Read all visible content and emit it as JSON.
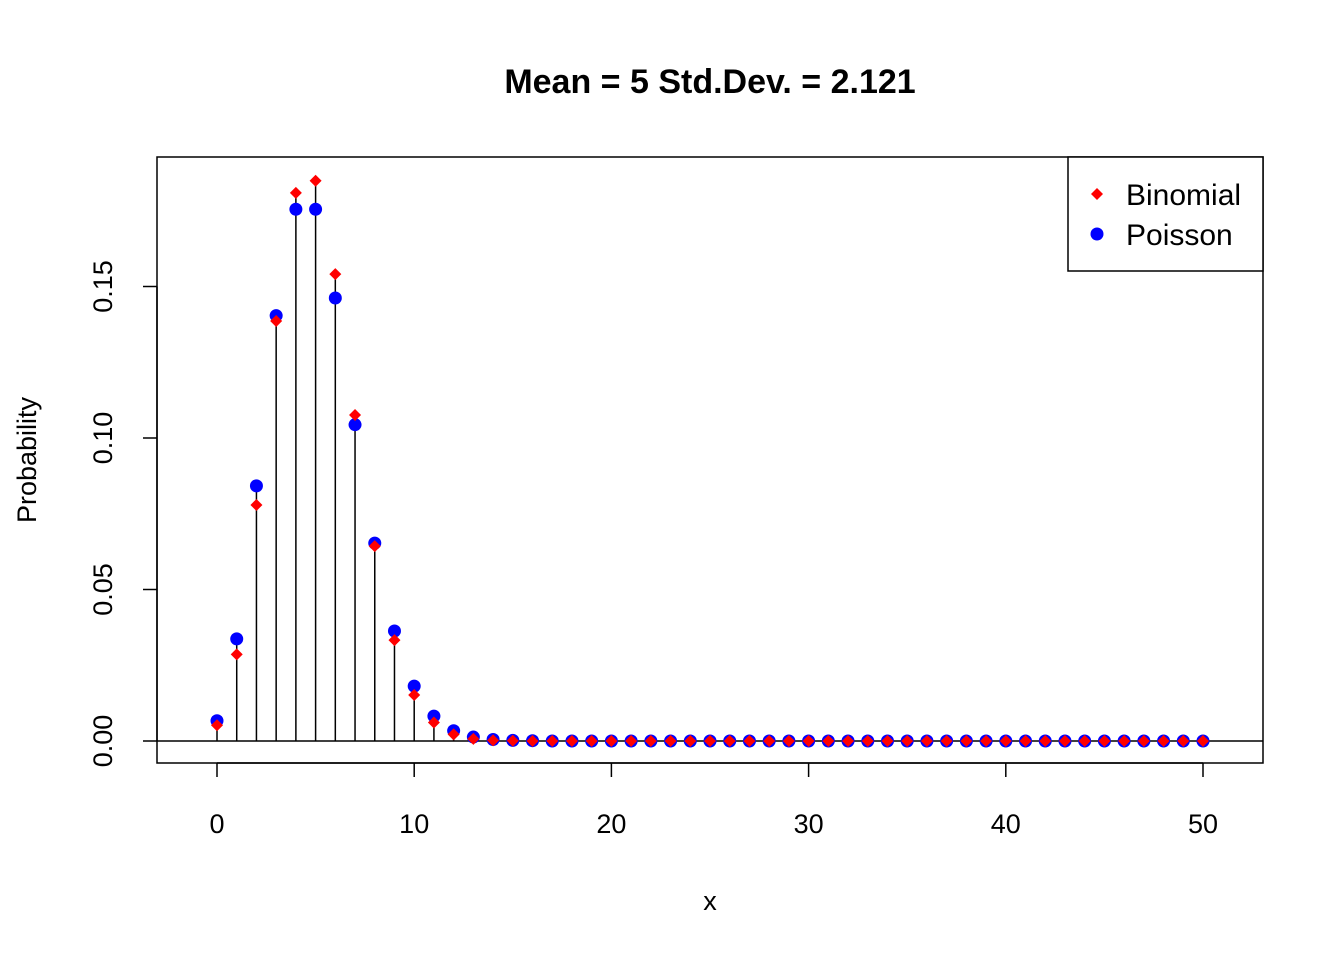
{
  "chart_data": {
    "type": "scatter",
    "title": "Mean = 5 Std.Dev. = 2.121",
    "xlabel": "x",
    "ylabel": "Probability",
    "xlim": [
      0,
      50
    ],
    "ylim": [
      0,
      0.185
    ],
    "x_ticks": [
      "0",
      "10",
      "20",
      "30",
      "40",
      "50"
    ],
    "y_ticks": [
      "0.00",
      "0.05",
      "0.10",
      "0.15"
    ],
    "grid": false,
    "legend_position": "top-right",
    "x": [
      0,
      1,
      2,
      3,
      4,
      5,
      6,
      7,
      8,
      9,
      10,
      11,
      12,
      13,
      14,
      15,
      16,
      17,
      18,
      19,
      20,
      21,
      22,
      23,
      24,
      25,
      26,
      27,
      28,
      29,
      30,
      31,
      32,
      33,
      34,
      35,
      36,
      37,
      38,
      39,
      40,
      41,
      42,
      43,
      44,
      45,
      46,
      47,
      48,
      49,
      50
    ],
    "series": [
      {
        "name": "Binomial",
        "marker": "diamond",
        "color": "#FF0000",
        "values": [
          0.0052,
          0.0286,
          0.0779,
          0.1386,
          0.1809,
          0.1849,
          0.1541,
          0.1076,
          0.0643,
          0.0333,
          0.0152,
          0.0061,
          0.0022,
          0.0007,
          0.0002,
          0.0001,
          0,
          0,
          0,
          0,
          0,
          0,
          0,
          0,
          0,
          0,
          0,
          0,
          0,
          0,
          0,
          0,
          0,
          0,
          0,
          0,
          0,
          0,
          0,
          0,
          0,
          0,
          0,
          0,
          0,
          0,
          0,
          0,
          0,
          0,
          0
        ]
      },
      {
        "name": "Poisson",
        "marker": "circle",
        "color": "#0000FF",
        "values": [
          0.0067,
          0.0337,
          0.0842,
          0.1404,
          0.1755,
          0.1755,
          0.1462,
          0.1044,
          0.0653,
          0.0363,
          0.0181,
          0.0082,
          0.0034,
          0.0013,
          0.0005,
          0.0002,
          0.0001,
          0,
          0,
          0,
          0,
          0,
          0,
          0,
          0,
          0,
          0,
          0,
          0,
          0,
          0,
          0,
          0,
          0,
          0,
          0,
          0,
          0,
          0,
          0,
          0,
          0,
          0,
          0,
          0,
          0,
          0,
          0,
          0,
          0,
          0
        ]
      }
    ]
  }
}
